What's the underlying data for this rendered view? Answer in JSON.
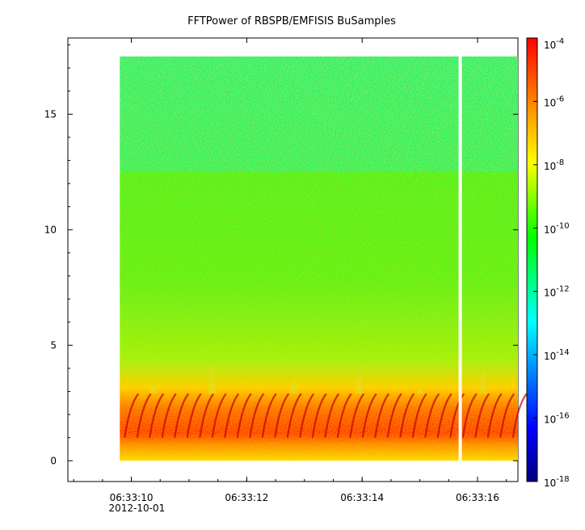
{
  "chart_data": {
    "type": "heatmap",
    "title": "FFTPower of RBSPB/EMFISIS  BuSamples",
    "xlabel": "",
    "ylabel": "",
    "x_ticks": [
      {
        "time": "06:33:10",
        "date": "2012-10-01"
      },
      {
        "time": "06:33:12",
        "date": ""
      },
      {
        "time": "06:33:14",
        "date": ""
      },
      {
        "time": "06:33:16",
        "date": ""
      }
    ],
    "xlim": [
      "06:33:08.9",
      "06:33:16.7"
    ],
    "data_x_range": [
      "06:33:09.8",
      "06:33:16.7"
    ],
    "data_gap_at": "06:33:15.7",
    "y_ticks": [
      0,
      5,
      10,
      15
    ],
    "ylim": [
      -0.9,
      18.3
    ],
    "data_y_range": [
      0,
      17.5
    ],
    "colorbar": {
      "scale": "log",
      "range": [
        1e-18,
        0.0001
      ],
      "tick_labels": [
        {
          "base": "10",
          "exp": "-4"
        },
        {
          "base": "10",
          "exp": "-6"
        },
        {
          "base": "10",
          "exp": "-8"
        },
        {
          "base": "10",
          "exp": "-10"
        },
        {
          "base": "10",
          "exp": "-12"
        },
        {
          "base": "10",
          "exp": "-14"
        },
        {
          "base": "10",
          "exp": "-16"
        },
        {
          "base": "10",
          "exp": "-18"
        }
      ],
      "colormap": [
        "#00007f",
        "#0000ff",
        "#00ffff",
        "#00ff00",
        "#ffff00",
        "#ff7f00",
        "#ff0000"
      ]
    },
    "bands": [
      {
        "y": [
          12.2,
          17.5
        ],
        "level": "1e-12"
      },
      {
        "y": [
          3.0,
          12.2
        ],
        "level": "1e-10"
      },
      {
        "y": [
          1.7,
          3.0
        ],
        "level": "1e-7"
      },
      {
        "y": [
          0.7,
          1.7
        ],
        "level": "1e-5"
      },
      {
        "y": [
          0,
          0.7
        ],
        "level": "1e-8"
      }
    ],
    "grid": false,
    "legend": "colorbar-right"
  }
}
